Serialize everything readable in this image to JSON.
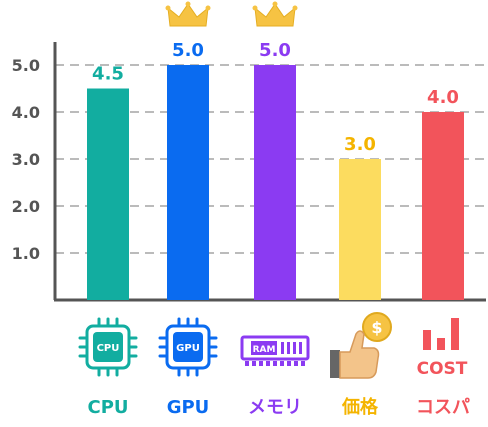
{
  "chart_data": {
    "type": "bar",
    "categories": [
      "CPU",
      "GPU",
      "メモリ",
      "価格",
      "コスパ"
    ],
    "values": [
      4.5,
      5.0,
      5.0,
      3.0,
      4.0
    ],
    "value_labels": [
      "4.5",
      "5.0",
      "5.0",
      "3.0",
      "4.0"
    ],
    "colors": [
      "#12ADA0",
      "#0A6BF0",
      "#8B3BF2",
      "#FCDC5F",
      "#F2545B"
    ],
    "label_colors": [
      "#12ADA0",
      "#0A6BF0",
      "#8B3BF2",
      "#F4B400",
      "#F2545B"
    ],
    "y_ticks": [
      1.0,
      2.0,
      3.0,
      4.0,
      5.0
    ],
    "y_tick_labels": [
      "1.0",
      "2.0",
      "3.0",
      "4.0",
      "5.0"
    ],
    "ylim": [
      0,
      5.0
    ],
    "grid": true,
    "crown_on": [
      "GPU",
      "メモリ"
    ],
    "icons": [
      "cpu-chip-icon",
      "gpu-chip-icon",
      "ram-module-icon",
      "thumbs-up-coin-icon",
      "cost-bars-icon"
    ],
    "icon_texts": {
      "cpu": "CPU",
      "gpu": "GPU",
      "ram": "RAM",
      "coin": "$",
      "cost": "COST"
    },
    "title": "",
    "xlabel": "",
    "ylabel": ""
  }
}
